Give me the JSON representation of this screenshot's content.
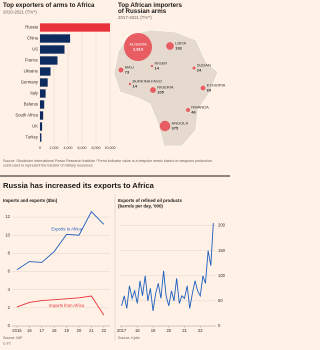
{
  "headline": "Russia has increased its exports to Africa",
  "sources": [
    "Source: Stockholm International Peace Research Institute *Trend indicator value is a bespoke metric based on weapons production costs used to represent the transfer of military resources",
    "Source: IMF",
    "© FT",
    "Source: Kpler"
  ],
  "chart_data": [
    {
      "type": "hbar",
      "title": "Top exporters of arms to Africa",
      "subtitle": "2010-2021 (TIV*)",
      "categories": [
        "Russia",
        "China",
        "US",
        "France",
        "Ukraine",
        "Germany",
        "Italy",
        "Belarus",
        "South Africa",
        "UK",
        "Turkey"
      ],
      "values": [
        10000,
        4300,
        3500,
        2500,
        1500,
        1100,
        800,
        600,
        450,
        300,
        200
      ],
      "colors": [
        "#e8333d",
        "#0d2b5e",
        "#0d2b5e",
        "#0d2b5e",
        "#0d2b5e",
        "#0d2b5e",
        "#0d2b5e",
        "#0d2b5e",
        "#0d2b5e",
        "#0d2b5e",
        "#0d2b5e"
      ],
      "xlim": [
        0,
        10000
      ],
      "xticks": [
        0,
        {
          "value": 2000,
          "label": "2,000"
        },
        {
          "value": 4000,
          "label": "4,000"
        },
        {
          "value": 6000,
          "label": "6,000"
        },
        {
          "value": 8000,
          "label": "8,000"
        },
        {
          "value": 10000,
          "label": "10,000"
        }
      ],
      "grid": true
    },
    {
      "type": "bubble-map",
      "title": "Top African importers of Russian arms",
      "subtitle": "2017-2021 (TIV*)",
      "categories": [
        "ALGERIA",
        "LIBYA",
        "MALI",
        "NIGER",
        "SUDAN",
        "BURKINA FASO",
        "NIGERIA",
        "ETHIOPIA",
        "RWANDA",
        "ANGOLA"
      ],
      "values": [
        2813,
        193,
        73,
        14,
        24,
        14,
        105,
        69,
        46,
        375
      ],
      "value_labels": [
        "2,813",
        "193",
        "73",
        "14",
        "24",
        "14",
        "105",
        "69",
        "46",
        "375"
      ],
      "color": "#e8333d"
    },
    {
      "type": "line",
      "title": "Imports and exports ($bn)",
      "x": [
        2015,
        2016,
        2017,
        2018,
        2019,
        2020,
        2021,
        2022
      ],
      "series": [
        {
          "name": "Exports to Africa",
          "color": "#1f5fbf",
          "values": [
            6.2,
            7.1,
            7.0,
            8.2,
            10.1,
            10.0,
            12.6,
            11.2
          ]
        },
        {
          "name": "Imports from Africa",
          "color": "#e8333d",
          "values": [
            2.1,
            2.6,
            2.8,
            2.9,
            3.0,
            3.1,
            3.3,
            1.2
          ]
        }
      ],
      "xlim": [
        2014.6,
        2022.5
      ],
      "ylim": [
        0,
        13
      ],
      "xticks": [
        2015,
        {
          "value": 2016,
          "label": "16"
        },
        {
          "value": 2017,
          "label": "17"
        },
        {
          "value": 2018,
          "label": "18"
        },
        {
          "value": 2019,
          "label": "19"
        },
        {
          "value": 2020,
          "label": "20"
        },
        {
          "value": 2021,
          "label": "21"
        },
        {
          "value": 2022,
          "label": "22"
        }
      ],
      "yticks": [
        0,
        2,
        4,
        6,
        8,
        10,
        12
      ],
      "grid": true,
      "yaxis_side": "left"
    },
    {
      "type": "line",
      "title": "Exports of refined oil products (barrels per day, '000)",
      "x": [
        2017,
        2017.17,
        2017.33,
        2017.5,
        2017.67,
        2017.83,
        2018,
        2018.17,
        2018.33,
        2018.5,
        2018.67,
        2018.83,
        2019,
        2019.17,
        2019.33,
        2019.5,
        2019.67,
        2019.83,
        2020,
        2020.17,
        2020.33,
        2020.5,
        2020.67,
        2020.83,
        2021,
        2021.17,
        2021.33,
        2021.5,
        2021.67,
        2021.83,
        2022,
        2022.17,
        2022.33,
        2022.5,
        2022.67,
        2022.83
      ],
      "series": [
        {
          "color": "#1f5fbf",
          "values": [
            40,
            60,
            35,
            80,
            55,
            70,
            45,
            90,
            60,
            100,
            50,
            75,
            30,
            65,
            85,
            55,
            110,
            60,
            40,
            70,
            50,
            95,
            45,
            60,
            55,
            80,
            35,
            65,
            90,
            70,
            60,
            100,
            85,
            150,
            120,
            205
          ]
        }
      ],
      "xlim": [
        2016.9,
        2023
      ],
      "ylim": [
        0,
        215
      ],
      "xticks": [
        2017,
        {
          "value": 2018,
          "label": "18"
        },
        {
          "value": 2019,
          "label": "19"
        },
        {
          "value": 2020,
          "label": "20"
        },
        {
          "value": 2021,
          "label": "21"
        },
        {
          "value": 2022,
          "label": "22"
        }
      ],
      "yticks": [
        0,
        50,
        100,
        150,
        200
      ],
      "grid": true,
      "yaxis_side": "right"
    }
  ]
}
